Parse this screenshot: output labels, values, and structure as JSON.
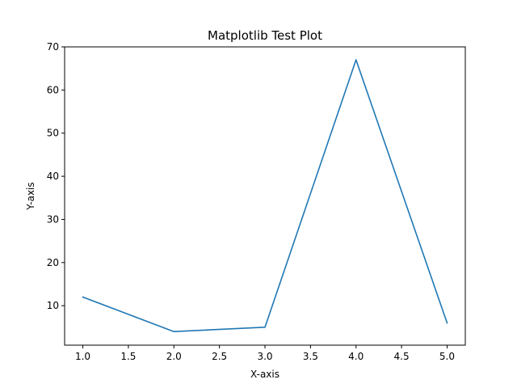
{
  "chart_data": {
    "type": "line",
    "title": "Matplotlib Test Plot",
    "xlabel": "X-axis",
    "ylabel": "Y-axis",
    "x": [
      1,
      2,
      3,
      4,
      5
    ],
    "series": [
      {
        "values": [
          12,
          4,
          5,
          67,
          6
        ],
        "color": "#1f77b4"
      }
    ],
    "xlim": [
      0.8,
      5.2
    ],
    "ylim": [
      0.85,
      70
    ],
    "xticks": [
      "1.0",
      "1.5",
      "2.0",
      "2.5",
      "3.0",
      "3.5",
      "4.0",
      "4.5",
      "5.0"
    ],
    "xtick_values": [
      1.0,
      1.5,
      2.0,
      2.5,
      3.0,
      3.5,
      4.0,
      4.5,
      5.0
    ],
    "yticks": [
      "10",
      "20",
      "30",
      "40",
      "50",
      "60",
      "70"
    ],
    "ytick_values": [
      10,
      20,
      30,
      40,
      50,
      60,
      70
    ],
    "grid": false,
    "legend": "none"
  }
}
